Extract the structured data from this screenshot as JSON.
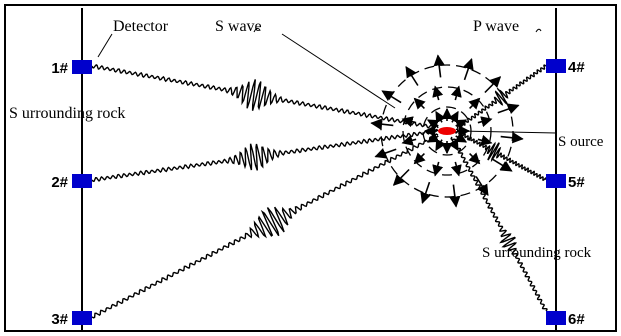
{
  "labels": {
    "detector": "Detector",
    "s_wave": "S wave",
    "p_wave": "P wave",
    "surrounding_rock_left": "S urrounding rock",
    "source": "S ource",
    "surrounding_rock_right": "S urrounding rock"
  },
  "detectors": {
    "d1": "1#",
    "d2": "2#",
    "d3": "3#",
    "d4": "4#",
    "d5": "5#",
    "d6": "6#"
  },
  "colors": {
    "detector": "#0000cc",
    "source": "#ee0000",
    "ink": "#000000"
  }
}
